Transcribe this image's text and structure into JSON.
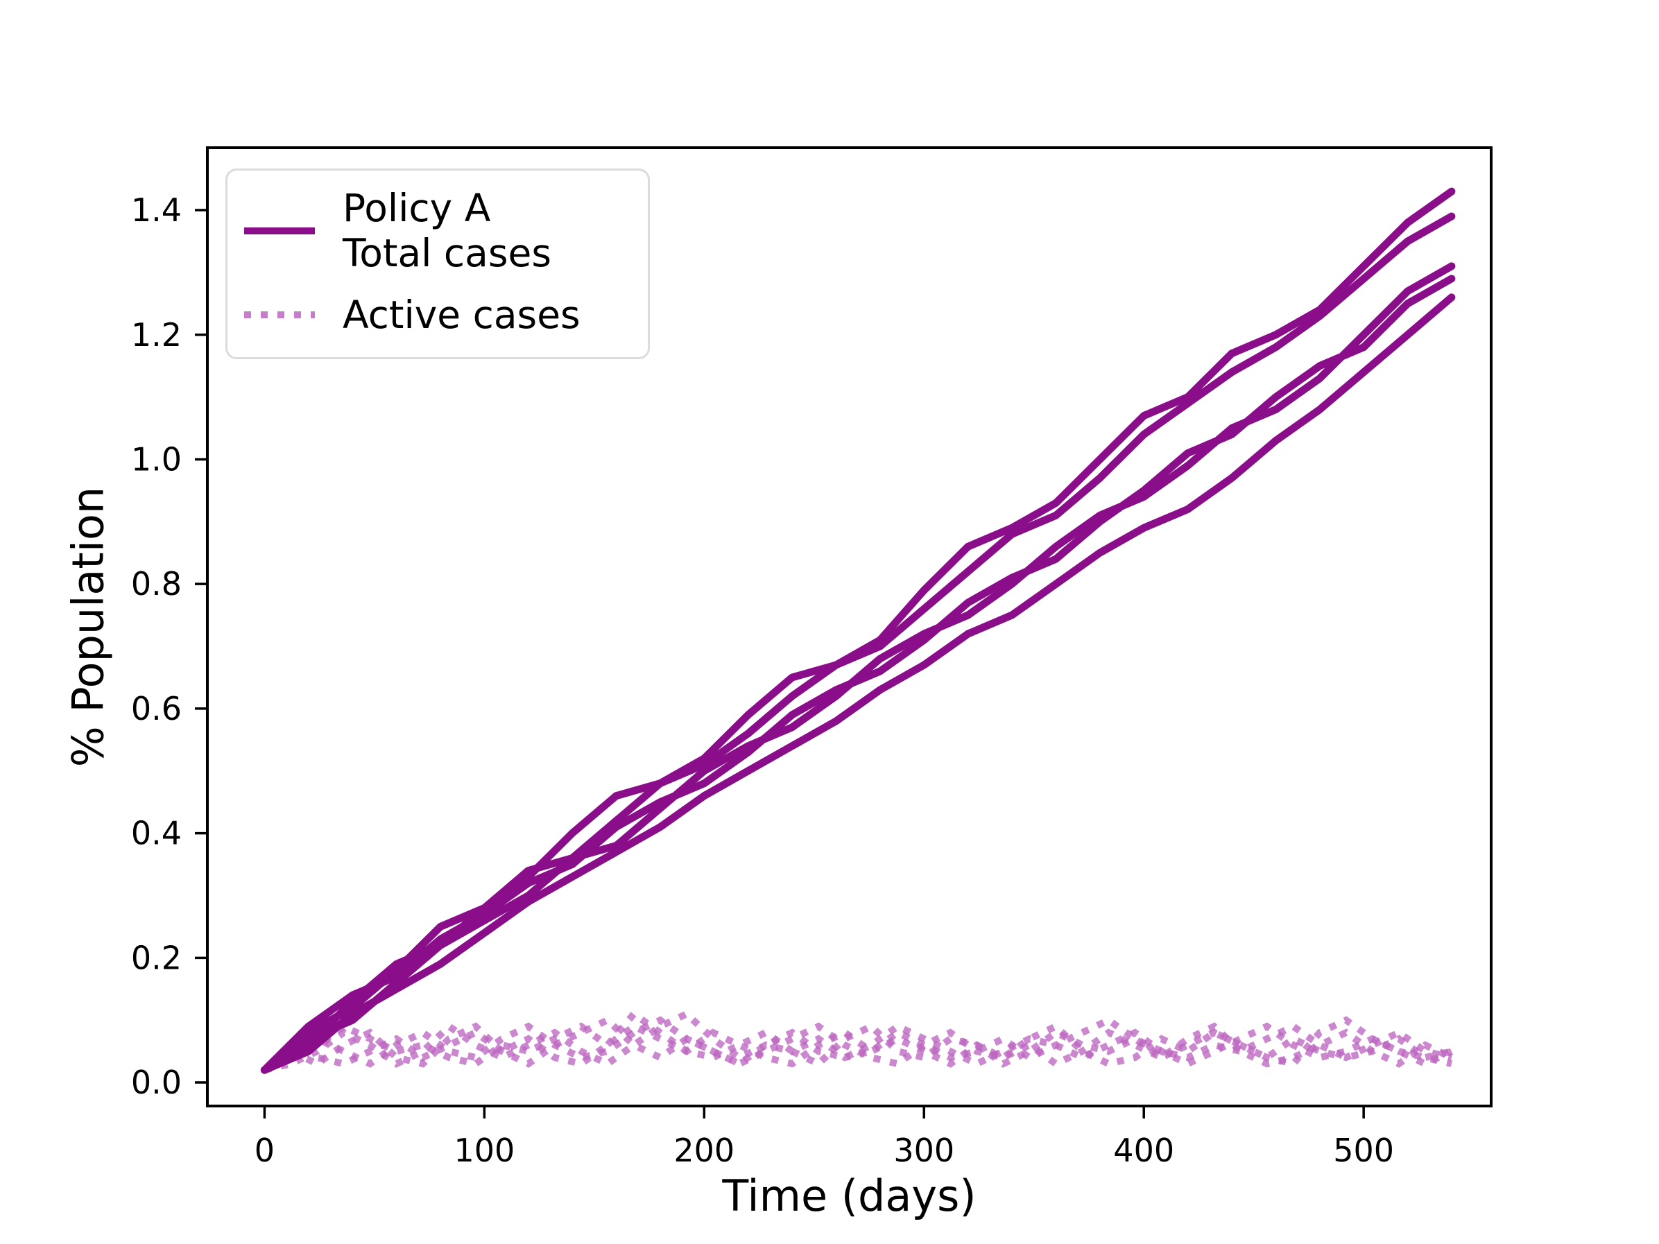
{
  "figure": {
    "background": "#ffffff"
  },
  "chart_data": {
    "type": "line",
    "title": "",
    "xlabel": "Time (days)",
    "ylabel": "% Population",
    "xlim": [
      -26,
      558
    ],
    "ylim": [
      -0.0378,
      1.5002
    ],
    "grid": false,
    "xticks": {
      "values": [
        0,
        100,
        200,
        300,
        400,
        500
      ],
      "labels": [
        "0",
        "100",
        "200",
        "300",
        "400",
        "500"
      ]
    },
    "yticks": {
      "values": [
        0.0,
        0.2,
        0.4,
        0.6,
        0.8,
        1.0,
        1.2,
        1.4
      ],
      "labels": [
        "0.0",
        "0.2",
        "0.4",
        "0.6",
        "0.8",
        "1.0",
        "1.2",
        "1.4"
      ]
    },
    "legend": {
      "position": "upper-left",
      "entries": [
        {
          "lines": [
            "Policy A",
            "Total cases"
          ],
          "linestyle": "solid",
          "series_group": "total"
        },
        {
          "lines": [
            "Active cases"
          ],
          "linestyle": "dotted",
          "series_group": "active"
        }
      ]
    },
    "colors": {
      "total_line": "#8a0d8a",
      "active_dots": "#bc66c0",
      "axis": "#000000",
      "text": "#000000",
      "legend_border": "#dcdcdc"
    },
    "x_total": [
      0,
      20,
      40,
      60,
      80,
      100,
      120,
      140,
      160,
      180,
      200,
      220,
      240,
      260,
      280,
      300,
      320,
      340,
      360,
      380,
      400,
      420,
      440,
      460,
      480,
      500,
      520,
      540
    ],
    "x_active": [
      0,
      12,
      24,
      36,
      48,
      60,
      72,
      84,
      96,
      108,
      120,
      132,
      144,
      156,
      168,
      180,
      192,
      204,
      216,
      228,
      240,
      252,
      264,
      276,
      288,
      300,
      312,
      324,
      336,
      348,
      360,
      372,
      384,
      396,
      408,
      420,
      432,
      444,
      456,
      468,
      480,
      492,
      504,
      516,
      528,
      540
    ],
    "series": [
      {
        "name": "Total cases run 1",
        "group": "total",
        "linestyle": "solid",
        "x_key": "x_total",
        "values": [
          0.02,
          0.08,
          0.12,
          0.18,
          0.25,
          0.28,
          0.33,
          0.4,
          0.46,
          0.48,
          0.52,
          0.59,
          0.65,
          0.67,
          0.71,
          0.79,
          0.86,
          0.89,
          0.93,
          1.0,
          1.07,
          1.1,
          1.17,
          1.2,
          1.24,
          1.31,
          1.38,
          1.43
        ]
      },
      {
        "name": "Total cases run 2",
        "group": "total",
        "linestyle": "solid",
        "x_key": "x_total",
        "values": [
          0.02,
          0.06,
          0.13,
          0.19,
          0.22,
          0.28,
          0.34,
          0.36,
          0.42,
          0.48,
          0.51,
          0.56,
          0.62,
          0.67,
          0.7,
          0.76,
          0.82,
          0.88,
          0.91,
          0.97,
          1.04,
          1.09,
          1.14,
          1.18,
          1.23,
          1.29,
          1.35,
          1.39
        ]
      },
      {
        "name": "Total cases run 3",
        "group": "total",
        "linestyle": "solid",
        "x_key": "x_total",
        "values": [
          0.02,
          0.07,
          0.1,
          0.16,
          0.22,
          0.26,
          0.3,
          0.36,
          0.38,
          0.44,
          0.5,
          0.54,
          0.57,
          0.62,
          0.68,
          0.72,
          0.75,
          0.8,
          0.86,
          0.91,
          0.94,
          0.99,
          1.05,
          1.08,
          1.13,
          1.2,
          1.27,
          1.31
        ]
      },
      {
        "name": "Total cases run 4",
        "group": "total",
        "linestyle": "solid",
        "x_key": "x_total",
        "values": [
          0.02,
          0.09,
          0.14,
          0.17,
          0.23,
          0.27,
          0.32,
          0.35,
          0.41,
          0.45,
          0.48,
          0.53,
          0.59,
          0.63,
          0.66,
          0.71,
          0.77,
          0.81,
          0.84,
          0.9,
          0.95,
          1.01,
          1.04,
          1.1,
          1.15,
          1.18,
          1.25,
          1.29
        ]
      },
      {
        "name": "Total cases run 5",
        "group": "total",
        "linestyle": "solid",
        "x_key": "x_total",
        "values": [
          0.02,
          0.05,
          0.11,
          0.15,
          0.19,
          0.24,
          0.29,
          0.33,
          0.37,
          0.41,
          0.46,
          0.5,
          0.54,
          0.58,
          0.63,
          0.67,
          0.72,
          0.75,
          0.8,
          0.85,
          0.89,
          0.92,
          0.97,
          1.03,
          1.08,
          1.14,
          1.2,
          1.26
        ]
      },
      {
        "name": "Active cases run 1",
        "group": "active",
        "linestyle": "dotted",
        "x_key": "x_active",
        "values": [
          0.02,
          0.04,
          0.07,
          0.05,
          0.03,
          0.06,
          0.08,
          0.05,
          0.04,
          0.07,
          0.09,
          0.06,
          0.04,
          0.05,
          0.08,
          0.1,
          0.07,
          0.05,
          0.03,
          0.06,
          0.08,
          0.05,
          0.04,
          0.06,
          0.09,
          0.07,
          0.05,
          0.03,
          0.05,
          0.07,
          0.06,
          0.04,
          0.06,
          0.08,
          0.05,
          0.03,
          0.05,
          0.07,
          0.09,
          0.06,
          0.04,
          0.05,
          0.07,
          0.05,
          0.04,
          0.03
        ]
      },
      {
        "name": "Active cases run 2",
        "group": "active",
        "linestyle": "dotted",
        "x_key": "x_active",
        "values": [
          0.02,
          0.05,
          0.03,
          0.06,
          0.08,
          0.04,
          0.03,
          0.07,
          0.09,
          0.05,
          0.03,
          0.06,
          0.08,
          0.1,
          0.06,
          0.04,
          0.07,
          0.05,
          0.03,
          0.05,
          0.07,
          0.09,
          0.06,
          0.04,
          0.03,
          0.06,
          0.08,
          0.05,
          0.04,
          0.06,
          0.03,
          0.05,
          0.08,
          0.06,
          0.04,
          0.07,
          0.09,
          0.05,
          0.03,
          0.04,
          0.06,
          0.08,
          0.05,
          0.03,
          0.06,
          0.04
        ]
      },
      {
        "name": "Active cases run 3",
        "group": "active",
        "linestyle": "dotted",
        "x_key": "x_active",
        "values": [
          0.02,
          0.03,
          0.05,
          0.08,
          0.06,
          0.03,
          0.05,
          0.09,
          0.06,
          0.04,
          0.06,
          0.08,
          0.05,
          0.03,
          0.06,
          0.09,
          0.11,
          0.07,
          0.04,
          0.06,
          0.05,
          0.03,
          0.07,
          0.09,
          0.05,
          0.04,
          0.07,
          0.06,
          0.03,
          0.05,
          0.08,
          0.06,
          0.05,
          0.07,
          0.04,
          0.06,
          0.08,
          0.06,
          0.04,
          0.07,
          0.05,
          0.04,
          0.06,
          0.08,
          0.05,
          0.04
        ]
      },
      {
        "name": "Active cases run 4",
        "group": "active",
        "linestyle": "dotted",
        "x_key": "x_active",
        "values": [
          0.02,
          0.06,
          0.04,
          0.03,
          0.05,
          0.07,
          0.04,
          0.06,
          0.08,
          0.05,
          0.07,
          0.04,
          0.03,
          0.06,
          0.09,
          0.07,
          0.05,
          0.08,
          0.06,
          0.04,
          0.03,
          0.06,
          0.08,
          0.05,
          0.07,
          0.05,
          0.03,
          0.06,
          0.04,
          0.07,
          0.09,
          0.05,
          0.03,
          0.04,
          0.07,
          0.05,
          0.08,
          0.06,
          0.04,
          0.03,
          0.08,
          0.1,
          0.07,
          0.05,
          0.03,
          0.05
        ]
      },
      {
        "name": "Active cases run 5",
        "group": "active",
        "linestyle": "dotted",
        "x_key": "x_active",
        "values": [
          0.02,
          0.04,
          0.06,
          0.09,
          0.07,
          0.05,
          0.06,
          0.04,
          0.03,
          0.06,
          0.05,
          0.07,
          0.09,
          0.06,
          0.11,
          0.08,
          0.05,
          0.04,
          0.06,
          0.08,
          0.05,
          0.07,
          0.04,
          0.05,
          0.08,
          0.06,
          0.04,
          0.05,
          0.07,
          0.04,
          0.06,
          0.08,
          0.1,
          0.07,
          0.05,
          0.04,
          0.06,
          0.05,
          0.07,
          0.09,
          0.06,
          0.04,
          0.05,
          0.07,
          0.04,
          0.05
        ]
      }
    ]
  }
}
